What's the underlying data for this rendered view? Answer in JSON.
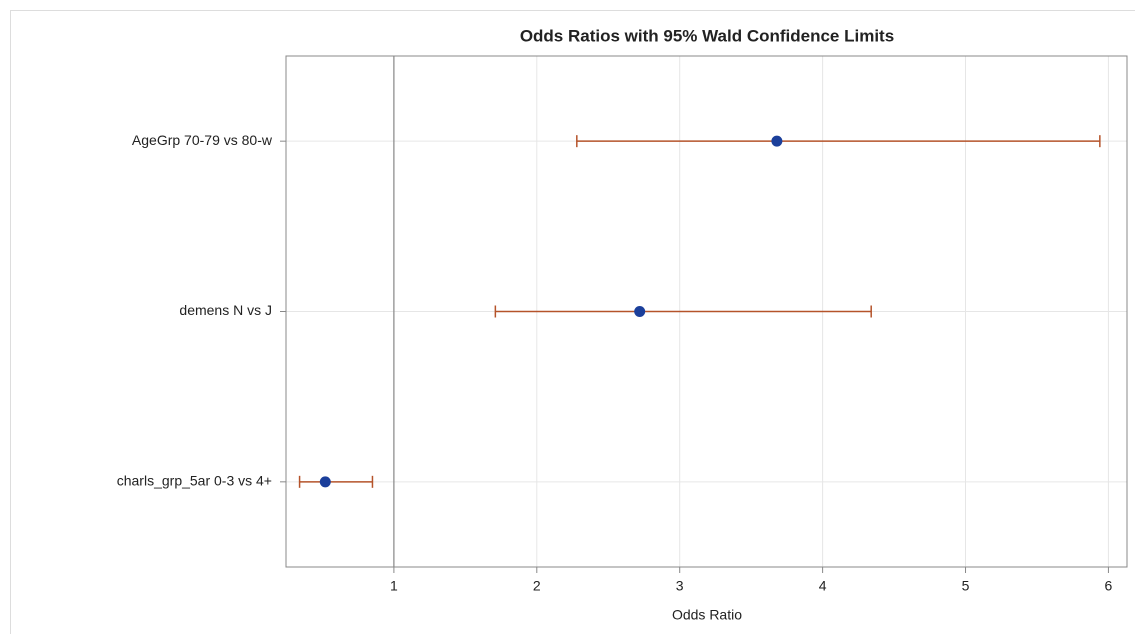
{
  "chart_data": {
    "type": "forest",
    "title": "Odds Ratios with 95% Wald Confidence Limits",
    "x_label": "Odds Ratio",
    "categories": [
      "AgeGrp 70-79 vs 80-w",
      "demens N vs J",
      "charls_grp_5ar 0-3 vs 4+"
    ],
    "values": [
      3.68,
      2.72,
      0.52
    ],
    "lower": [
      2.28,
      1.71,
      0.34
    ],
    "upper": [
      5.94,
      4.34,
      0.85
    ],
    "point_color": "#1b3f9b",
    "interval_color": "#b5532a",
    "reference_line": 1,
    "xlim": [
      0.245,
      6.13
    ],
    "xticks": [
      1,
      2,
      3,
      4,
      5,
      6
    ],
    "grid": true
  }
}
